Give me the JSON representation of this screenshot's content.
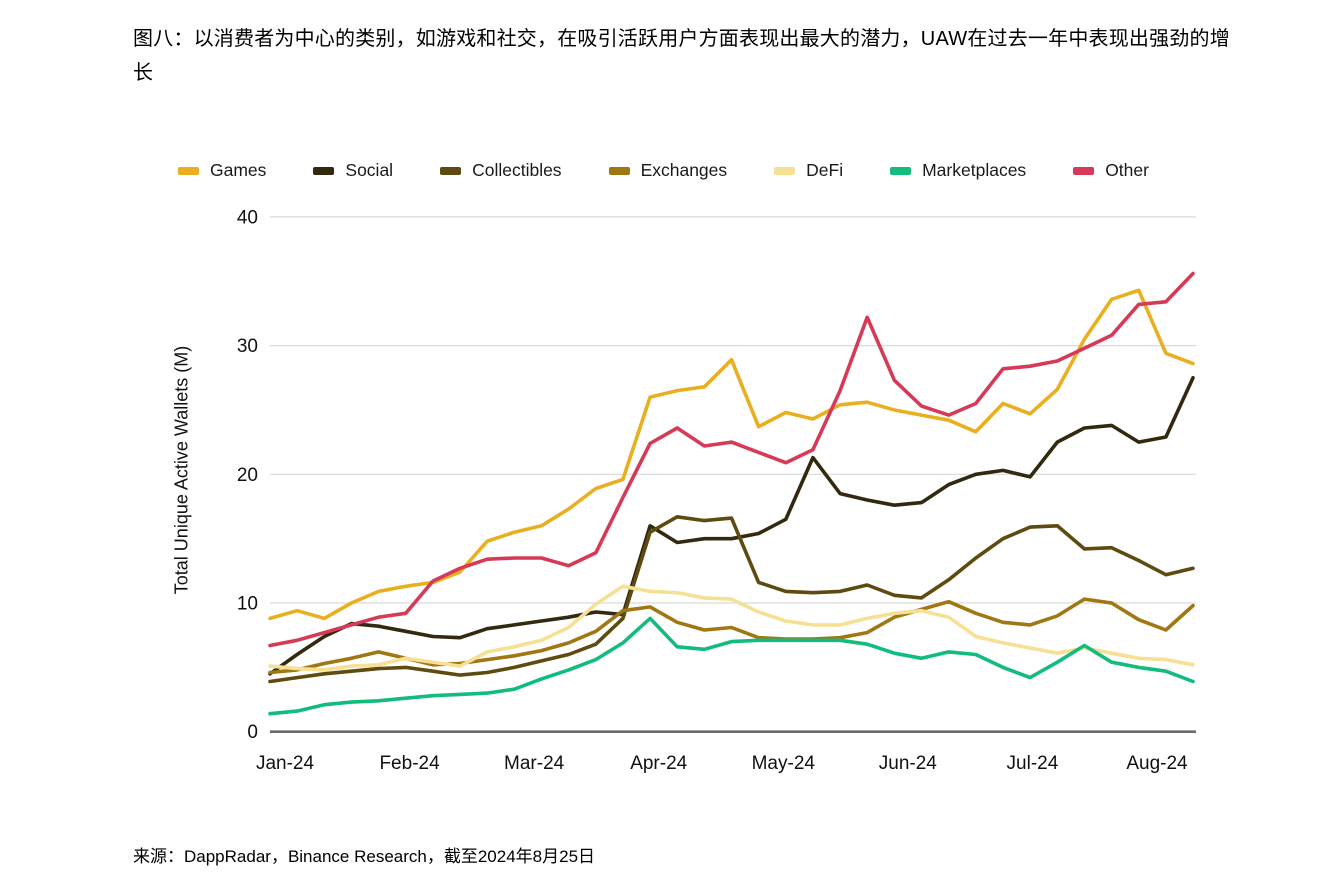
{
  "title": "图八：以消费者为中心的类别，如游戏和社交，在吸引活跃用户方面表现出最大的潜力，UAW在过去一年中表现出强劲的增长",
  "source": "来源：DappRadar，Binance Research，截至2024年8月25日",
  "chart_data": {
    "type": "line",
    "title": "",
    "xlabel": "",
    "ylabel": "Total Unique Active Wallets (M)",
    "ylim": [
      0,
      40
    ],
    "yticks": [
      0,
      10,
      20,
      30,
      40
    ],
    "xticks": [
      "Jan-24",
      "Feb-24",
      "Mar-24",
      "Apr-24",
      "May-24",
      "Jun-24",
      "Jul-24",
      "Aug-24"
    ],
    "x_frequency": "weekly",
    "n_points": 35,
    "grid": "horizontal",
    "legend_position": "top",
    "gridline_color": "#DADADA",
    "axis_color": "#6B6B6B",
    "series": [
      {
        "name": "Games",
        "color": "#EAAF20",
        "values": [
          8.8,
          9.4,
          8.8,
          10.0,
          10.9,
          11.3,
          11.6,
          12.4,
          14.8,
          15.5,
          16.0,
          17.3,
          18.9,
          19.6,
          26.0,
          26.5,
          26.8,
          28.9,
          23.7,
          24.8,
          24.3,
          25.4,
          25.6,
          25.0,
          24.6,
          24.2,
          23.3,
          25.5,
          24.7,
          26.6,
          30.5,
          33.6,
          34.3,
          29.4,
          28.6
        ]
      },
      {
        "name": "Social",
        "color": "#33290F",
        "values": [
          4.5,
          6.0,
          7.4,
          8.4,
          8.2,
          7.8,
          7.4,
          7.3,
          8.0,
          8.3,
          8.6,
          8.9,
          9.3,
          9.1,
          16.0,
          14.7,
          15.0,
          15.0,
          15.4,
          16.5,
          21.3,
          18.5,
          18.0,
          17.6,
          17.8,
          19.2,
          20.0,
          20.3,
          19.8,
          22.5,
          23.6,
          23.8,
          22.5,
          22.9,
          27.5
        ]
      },
      {
        "name": "Collectibles",
        "color": "#5F4A10",
        "values": [
          3.9,
          4.2,
          4.5,
          4.7,
          4.9,
          5.0,
          4.7,
          4.4,
          4.6,
          5.0,
          5.5,
          6.0,
          6.8,
          8.8,
          15.5,
          16.7,
          16.4,
          16.6,
          11.6,
          10.9,
          10.8,
          10.9,
          11.4,
          10.6,
          10.4,
          11.8,
          13.5,
          15.0,
          15.9,
          16.0,
          14.2,
          14.3,
          13.3,
          12.2,
          12.7
        ]
      },
      {
        "name": "Exchanges",
        "color": "#A07712",
        "values": [
          4.6,
          4.8,
          5.3,
          5.7,
          6.2,
          5.7,
          5.2,
          5.3,
          5.6,
          5.9,
          6.3,
          6.9,
          7.8,
          9.4,
          9.7,
          8.5,
          7.9,
          8.1,
          7.3,
          7.2,
          7.2,
          7.3,
          7.7,
          8.9,
          9.5,
          10.1,
          9.2,
          8.5,
          8.3,
          9.0,
          10.3,
          10.0,
          8.7,
          7.9,
          9.8
        ]
      },
      {
        "name": "DeFi",
        "color": "#F5E093",
        "values": [
          5.1,
          4.9,
          4.8,
          5.1,
          5.2,
          5.7,
          5.4,
          5.1,
          6.2,
          6.6,
          7.1,
          8.1,
          9.9,
          11.3,
          10.9,
          10.8,
          10.4,
          10.3,
          9.3,
          8.6,
          8.3,
          8.3,
          8.8,
          9.2,
          9.4,
          8.9,
          7.4,
          6.9,
          6.5,
          6.1,
          6.5,
          6.1,
          5.7,
          5.6,
          5.2
        ]
      },
      {
        "name": "Marketplaces",
        "color": "#12BC7C",
        "values": [
          1.4,
          1.6,
          2.1,
          2.3,
          2.4,
          2.6,
          2.8,
          2.9,
          3.0,
          3.3,
          4.1,
          4.8,
          5.6,
          6.9,
          8.8,
          6.6,
          6.4,
          7.0,
          7.1,
          7.1,
          7.1,
          7.1,
          6.8,
          6.1,
          5.7,
          6.2,
          6.0,
          5.0,
          4.2,
          5.4,
          6.7,
          5.4,
          5.0,
          4.7,
          3.9
        ]
      },
      {
        "name": "Other",
        "color": "#D63A56",
        "values": [
          6.7,
          7.1,
          7.7,
          8.3,
          8.9,
          9.2,
          11.7,
          12.7,
          13.4,
          13.5,
          13.5,
          12.9,
          13.9,
          18.2,
          22.4,
          23.6,
          22.2,
          22.5,
          21.7,
          20.9,
          21.9,
          26.5,
          32.2,
          27.3,
          25.3,
          24.6,
          25.5,
          28.2,
          28.4,
          28.8,
          29.8,
          30.8,
          33.2,
          33.4,
          35.6
        ]
      }
    ]
  }
}
